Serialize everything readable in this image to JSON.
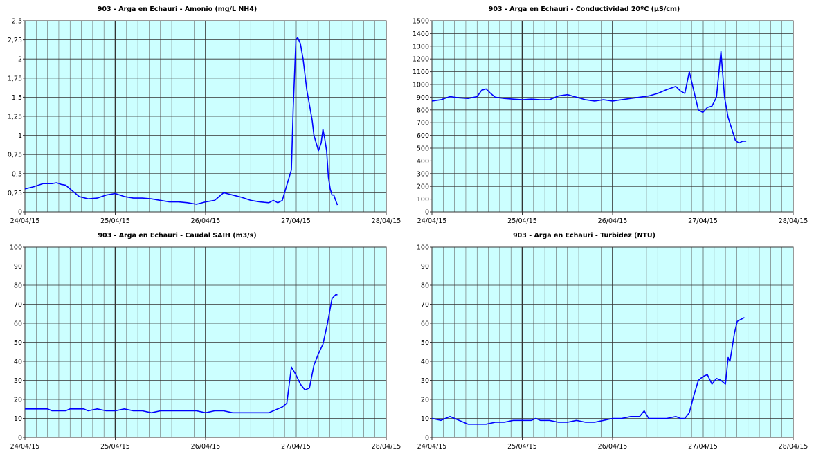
{
  "chart_data": [
    {
      "type": "line",
      "title": "903 - Arga en Echauri - Amonio (mg/L NH4)",
      "xlabel": "",
      "ylabel": "",
      "x_tick_labels": [
        "24/04/15",
        "25/04/15",
        "26/04/15",
        "27/04/15",
        "28/04/15"
      ],
      "y_tick_labels": [
        "0",
        "0,25",
        "0,5",
        "0,75",
        "1",
        "1,25",
        "1,5",
        "1,75",
        "2",
        "2,25",
        "2,5"
      ],
      "xlim": [
        0,
        4
      ],
      "ylim": [
        0,
        2.5
      ],
      "grid": true,
      "series": [
        {
          "color": "#0000ff",
          "x": [
            0.0,
            0.1,
            0.2,
            0.3,
            0.35,
            0.4,
            0.45,
            0.5,
            0.55,
            0.6,
            0.7,
            0.8,
            0.9,
            1.0,
            1.1,
            1.2,
            1.3,
            1.4,
            1.5,
            1.6,
            1.7,
            1.8,
            1.9,
            2.0,
            2.1,
            2.2,
            2.3,
            2.4,
            2.5,
            2.6,
            2.7,
            2.75,
            2.8,
            2.85,
            2.9,
            2.95,
            2.97,
            3.0,
            3.02,
            3.05,
            3.08,
            3.1,
            3.12,
            3.15,
            3.18,
            3.2,
            3.25,
            3.28,
            3.3,
            3.32,
            3.34,
            3.36,
            3.38,
            3.4,
            3.42,
            3.44,
            3.46
          ],
          "y": [
            0.3,
            0.33,
            0.37,
            0.37,
            0.38,
            0.36,
            0.35,
            0.3,
            0.25,
            0.2,
            0.17,
            0.18,
            0.22,
            0.24,
            0.2,
            0.18,
            0.18,
            0.17,
            0.15,
            0.13,
            0.13,
            0.12,
            0.1,
            0.13,
            0.15,
            0.25,
            0.22,
            0.19,
            0.15,
            0.13,
            0.12,
            0.15,
            0.12,
            0.15,
            0.35,
            0.55,
            1.35,
            2.25,
            2.28,
            2.2,
            2.0,
            1.8,
            1.6,
            1.4,
            1.2,
            1.0,
            0.8,
            0.9,
            1.08,
            0.95,
            0.8,
            0.45,
            0.3,
            0.22,
            0.22,
            0.15,
            0.09
          ]
        }
      ]
    },
    {
      "type": "line",
      "title": "903 - Arga en Echauri - Conductividad 20ºC (µS/cm)",
      "xlabel": "",
      "ylabel": "",
      "x_tick_labels": [
        "24/04/15",
        "25/04/15",
        "26/04/15",
        "27/04/15",
        "28/04/15"
      ],
      "y_tick_labels": [
        "0",
        "100",
        "200",
        "300",
        "400",
        "500",
        "600",
        "700",
        "800",
        "900",
        "1000",
        "1100",
        "1200",
        "1300",
        "1400",
        "1500"
      ],
      "xlim": [
        0,
        4
      ],
      "ylim": [
        0,
        1500
      ],
      "grid": true,
      "series": [
        {
          "color": "#0000ff",
          "x": [
            0.0,
            0.1,
            0.2,
            0.3,
            0.4,
            0.5,
            0.55,
            0.6,
            0.65,
            0.7,
            0.8,
            0.9,
            1.0,
            1.1,
            1.2,
            1.3,
            1.4,
            1.5,
            1.6,
            1.7,
            1.8,
            1.9,
            2.0,
            2.1,
            2.2,
            2.3,
            2.4,
            2.5,
            2.6,
            2.7,
            2.75,
            2.8,
            2.85,
            2.9,
            2.95,
            3.0,
            3.05,
            3.1,
            3.15,
            3.2,
            3.24,
            3.28,
            3.32,
            3.36,
            3.4,
            3.44,
            3.48
          ],
          "y": [
            870,
            880,
            905,
            895,
            890,
            905,
            955,
            965,
            930,
            900,
            890,
            885,
            880,
            885,
            880,
            880,
            910,
            920,
            900,
            880,
            870,
            880,
            870,
            880,
            890,
            900,
            910,
            930,
            960,
            985,
            950,
            930,
            1100,
            950,
            800,
            780,
            820,
            830,
            900,
            1260,
            900,
            740,
            650,
            560,
            540,
            555,
            555
          ]
        }
      ]
    },
    {
      "type": "line",
      "title": "903 - Arga en Echauri - Caudal SAIH (m3/s)",
      "xlabel": "",
      "ylabel": "",
      "x_tick_labels": [
        "24/04/15",
        "25/04/15",
        "26/04/15",
        "27/04/15",
        "28/04/15"
      ],
      "y_tick_labels": [
        "0",
        "10",
        "20",
        "30",
        "40",
        "50",
        "60",
        "70",
        "80",
        "90",
        "100"
      ],
      "xlim": [
        0,
        4
      ],
      "ylim": [
        0,
        100
      ],
      "grid": true,
      "series": [
        {
          "color": "#0000ff",
          "x": [
            0.0,
            0.25,
            0.3,
            0.45,
            0.5,
            0.65,
            0.7,
            0.8,
            0.9,
            1.0,
            1.1,
            1.2,
            1.3,
            1.4,
            1.5,
            1.6,
            1.7,
            1.8,
            1.9,
            2.0,
            2.1,
            2.2,
            2.3,
            2.4,
            2.5,
            2.6,
            2.7,
            2.75,
            2.8,
            2.85,
            2.9,
            2.95,
            3.0,
            3.05,
            3.1,
            3.15,
            3.2,
            3.25,
            3.3,
            3.35,
            3.4,
            3.42,
            3.44,
            3.46
          ],
          "y": [
            15,
            15,
            14,
            14,
            15,
            15,
            14,
            15,
            14,
            14,
            15,
            14,
            14,
            13,
            14,
            14,
            14,
            14,
            14,
            13,
            14,
            14,
            13,
            13,
            13,
            13,
            13,
            14,
            15,
            16,
            18,
            37,
            33,
            28,
            25,
            26,
            38,
            44,
            49,
            60,
            73,
            74,
            75,
            75
          ]
        }
      ]
    },
    {
      "type": "line",
      "title": "903 - Arga en Echauri - Turbidez (NTU)",
      "xlabel": "",
      "ylabel": "",
      "x_tick_labels": [
        "24/04/15",
        "25/04/15",
        "26/04/15",
        "27/04/15",
        "28/04/15"
      ],
      "y_tick_labels": [
        "0",
        "10",
        "20",
        "30",
        "40",
        "50",
        "60",
        "70",
        "80",
        "90",
        "100"
      ],
      "xlim": [
        0,
        4
      ],
      "ylim": [
        0,
        100
      ],
      "grid": true,
      "series": [
        {
          "color": "#0000ff",
          "x": [
            0.0,
            0.1,
            0.2,
            0.3,
            0.35,
            0.4,
            0.5,
            0.6,
            0.7,
            0.8,
            0.9,
            1.0,
            1.1,
            1.15,
            1.2,
            1.3,
            1.4,
            1.5,
            1.6,
            1.7,
            1.8,
            1.9,
            2.0,
            2.1,
            2.2,
            2.3,
            2.35,
            2.4,
            2.5,
            2.6,
            2.7,
            2.75,
            2.8,
            2.85,
            2.9,
            2.95,
            3.0,
            3.05,
            3.1,
            3.15,
            3.2,
            3.25,
            3.28,
            3.3,
            3.35,
            3.38,
            3.42,
            3.46
          ],
          "y": [
            10,
            9,
            11,
            9,
            8,
            7,
            7,
            7,
            8,
            8,
            9,
            9,
            9,
            10,
            9,
            9,
            8,
            8,
            9,
            8,
            8,
            9,
            10,
            10,
            11,
            11,
            14,
            10,
            10,
            10,
            11,
            10,
            10,
            13,
            22,
            30,
            32,
            33,
            28,
            31,
            30,
            28,
            42,
            40,
            55,
            61,
            62,
            63
          ]
        }
      ]
    }
  ]
}
